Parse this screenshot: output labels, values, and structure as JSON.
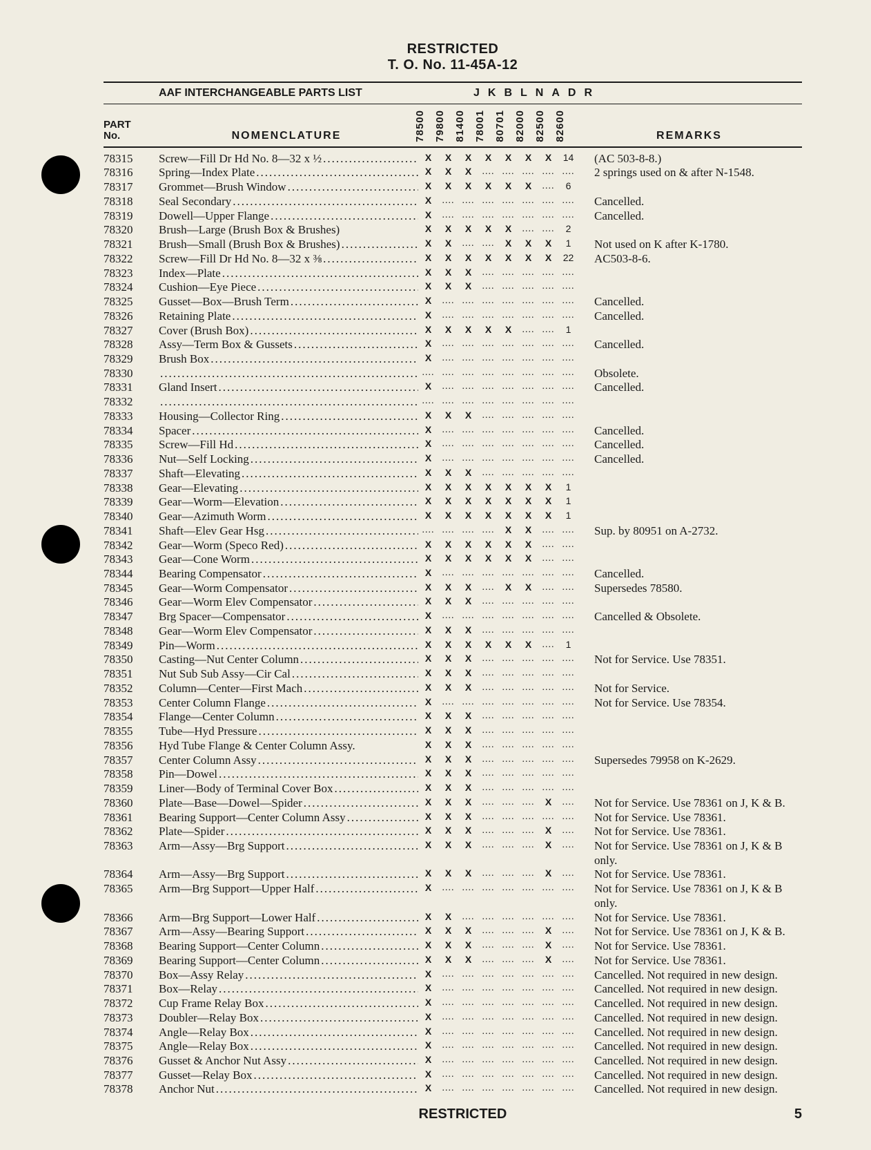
{
  "header": {
    "classification": "RESTRICTED",
    "doc_number": "T. O. No. 11-45A-12",
    "list_title": "AAF INTERCHANGEABLE PARTS LIST",
    "model_letters": "JKBLNADR"
  },
  "columns": {
    "part_no_l1": "PART",
    "part_no_l2": "No.",
    "nomenclature": "NOMENCLATURE",
    "remarks": "REMARKS",
    "model_codes": [
      "78500",
      "79800",
      "81400",
      "78001",
      "80701",
      "82000",
      "82500",
      "82600"
    ]
  },
  "footer": {
    "classification": "RESTRICTED",
    "page": "5"
  },
  "rows": [
    {
      "pn": "78315",
      "nm": "Screw—Fill Dr Hd No. 8—32 x ½",
      "mk": [
        "X",
        "X",
        "X",
        "X",
        "X",
        "X",
        "X",
        "14"
      ],
      "rm": "(AC 503-8-8.)"
    },
    {
      "pn": "78316",
      "nm": "Spring—Index Plate",
      "mk": [
        "X",
        "X",
        "X",
        "",
        "",
        "",
        "",
        ""
      ],
      "rm": "2 springs used on & after N-1548."
    },
    {
      "pn": "78317",
      "nm": "Grommet—Brush Window",
      "mk": [
        "X",
        "X",
        "X",
        "X",
        "X",
        "X",
        "",
        "6"
      ],
      "rm": ""
    },
    {
      "pn": "78318",
      "nm": "Seal Secondary",
      "mk": [
        "X",
        "",
        "",
        "",
        "",
        "",
        "",
        ""
      ],
      "rm": "Cancelled."
    },
    {
      "pn": "78319",
      "nm": "Dowell—Upper Flange",
      "mk": [
        "X",
        "",
        "",
        "",
        "",
        "",
        "",
        ""
      ],
      "rm": "Cancelled."
    },
    {
      "pn": "78320",
      "nm": "Brush—Large (Brush Box & Brushes)",
      "mk": [
        "X",
        "X",
        "X",
        "X",
        "X",
        "",
        "",
        "2"
      ],
      "rm": "",
      "noleader": true
    },
    {
      "pn": "78321",
      "nm": "Brush—Small (Brush Box & Brushes)",
      "mk": [
        "X",
        "X",
        "",
        "",
        "X",
        "X",
        "X",
        "1"
      ],
      "rm": "Not used on K after K-1780."
    },
    {
      "pn": "78322",
      "nm": "Screw—Fill Dr Hd No. 8—32 x ⅜",
      "mk": [
        "X",
        "X",
        "X",
        "X",
        "X",
        "X",
        "X",
        "22"
      ],
      "rm": "AC503-8-6."
    },
    {
      "pn": "78323",
      "nm": "Index—Plate",
      "mk": [
        "X",
        "X",
        "X",
        "",
        "",
        "",
        "",
        ""
      ],
      "rm": ""
    },
    {
      "pn": "78324",
      "nm": "Cushion—Eye Piece",
      "mk": [
        "X",
        "X",
        "X",
        "",
        "",
        "",
        "",
        ""
      ],
      "rm": ""
    },
    {
      "pn": "78325",
      "nm": "Gusset—Box—Brush Term",
      "mk": [
        "X",
        "",
        "",
        "",
        "",
        "",
        "",
        ""
      ],
      "rm": "Cancelled."
    },
    {
      "pn": "78326",
      "nm": "Retaining Plate",
      "mk": [
        "X",
        "",
        "",
        "",
        "",
        "",
        "",
        ""
      ],
      "rm": "Cancelled."
    },
    {
      "pn": "78327",
      "nm": "Cover (Brush Box)",
      "mk": [
        "X",
        "X",
        "X",
        "X",
        "X",
        "",
        "",
        "1"
      ],
      "rm": ""
    },
    {
      "pn": "78328",
      "nm": "Assy—Term Box & Gussets",
      "mk": [
        "X",
        "",
        "",
        "",
        "",
        "",
        "",
        ""
      ],
      "rm": "Cancelled."
    },
    {
      "pn": "78329",
      "nm": "Brush Box",
      "mk": [
        "X",
        "",
        "",
        "",
        "",
        "",
        "",
        ""
      ],
      "rm": ""
    },
    {
      "pn": "78330",
      "nm": "",
      "mk": [
        "",
        "",
        "",
        "",
        "",
        "",
        "",
        ""
      ],
      "rm": "Obsolete."
    },
    {
      "pn": "78331",
      "nm": "Gland Insert",
      "mk": [
        "X",
        "",
        "",
        "",
        "",
        "",
        "",
        ""
      ],
      "rm": "Cancelled."
    },
    {
      "pn": "78332",
      "nm": "",
      "mk": [
        "",
        "",
        "",
        "",
        "",
        "",
        "",
        ""
      ],
      "rm": ""
    },
    {
      "pn": "78333",
      "nm": "Housing—Collector Ring",
      "mk": [
        "X",
        "X",
        "X",
        "",
        "",
        "",
        "",
        ""
      ],
      "rm": ""
    },
    {
      "pn": "78334",
      "nm": "Spacer",
      "mk": [
        "X",
        "",
        "",
        "",
        "",
        "",
        "",
        ""
      ],
      "rm": "Cancelled."
    },
    {
      "pn": "78335",
      "nm": "Screw—Fill Hd",
      "mk": [
        "X",
        "",
        "",
        "",
        "",
        "",
        "",
        ""
      ],
      "rm": "Cancelled."
    },
    {
      "pn": "78336",
      "nm": "Nut—Self Locking",
      "mk": [
        "X",
        "",
        "",
        "",
        "",
        "",
        "",
        ""
      ],
      "rm": "Cancelled."
    },
    {
      "pn": "78337",
      "nm": "Shaft—Elevating",
      "mk": [
        "X",
        "X",
        "X",
        "",
        "",
        "",
        "",
        ""
      ],
      "rm": ""
    },
    {
      "pn": "78338",
      "nm": "Gear—Elevating",
      "mk": [
        "X",
        "X",
        "X",
        "X",
        "X",
        "X",
        "X",
        "1"
      ],
      "rm": ""
    },
    {
      "pn": "78339",
      "nm": "Gear—Worm—Elevation",
      "mk": [
        "X",
        "X",
        "X",
        "X",
        "X",
        "X",
        "X",
        "1"
      ],
      "rm": ""
    },
    {
      "pn": "78340",
      "nm": "Gear—Azimuth Worm",
      "mk": [
        "X",
        "X",
        "X",
        "X",
        "X",
        "X",
        "X",
        "1"
      ],
      "rm": ""
    },
    {
      "pn": "78341",
      "nm": "Shaft—Elev Gear Hsg",
      "mk": [
        "",
        "",
        "",
        "",
        "X",
        "X",
        "",
        ""
      ],
      "rm": "Sup. by 80951 on A-2732."
    },
    {
      "pn": "78342",
      "nm": "Gear—Worm (Speco Red)",
      "mk": [
        "X",
        "X",
        "X",
        "X",
        "X",
        "X",
        "",
        ""
      ],
      "rm": ""
    },
    {
      "pn": "78343",
      "nm": "Gear—Cone Worm",
      "mk": [
        "X",
        "X",
        "X",
        "X",
        "X",
        "X",
        "",
        ""
      ],
      "rm": ""
    },
    {
      "pn": "78344",
      "nm": "Bearing Compensator",
      "mk": [
        "X",
        "",
        "",
        "",
        "",
        "",
        "",
        ""
      ],
      "rm": "Cancelled."
    },
    {
      "pn": "78345",
      "nm": "Gear—Worm Compensator",
      "mk": [
        "X",
        "X",
        "X",
        "",
        "X",
        "X",
        "",
        ""
      ],
      "rm": "Supersedes 78580."
    },
    {
      "pn": "78346",
      "nm": "Gear—Worm Elev Compensator",
      "mk": [
        "X",
        "X",
        "X",
        "",
        "",
        "",
        "",
        ""
      ],
      "rm": ""
    },
    {
      "pn": "78347",
      "nm": "Brg Spacer—Compensator",
      "mk": [
        "X",
        "",
        "",
        "",
        "",
        "",
        "",
        ""
      ],
      "rm": "Cancelled & Obsolete."
    },
    {
      "pn": "78348",
      "nm": "Gear—Worm Elev Compensator",
      "mk": [
        "X",
        "X",
        "X",
        "",
        "",
        "",
        "",
        ""
      ],
      "rm": ""
    },
    {
      "pn": "78349",
      "nm": "Pin—Worm",
      "mk": [
        "X",
        "X",
        "X",
        "X",
        "X",
        "X",
        "",
        "1"
      ],
      "rm": ""
    },
    {
      "pn": "78350",
      "nm": "Casting—Nut Center Column",
      "mk": [
        "X",
        "X",
        "X",
        "",
        "",
        "",
        "",
        ""
      ],
      "rm": "Not for Service.  Use 78351."
    },
    {
      "pn": "78351",
      "nm": "Nut Sub Sub Assy—Cir Cal",
      "mk": [
        "X",
        "X",
        "X",
        "",
        "",
        "",
        "",
        ""
      ],
      "rm": ""
    },
    {
      "pn": "78352",
      "nm": "Column—Center—First Mach",
      "mk": [
        "X",
        "X",
        "X",
        "",
        "",
        "",
        "",
        ""
      ],
      "rm": "Not for Service."
    },
    {
      "pn": "78353",
      "nm": "Center Column Flange",
      "mk": [
        "X",
        "",
        "",
        "",
        "",
        "",
        "",
        ""
      ],
      "rm": "Not for Service.  Use 78354."
    },
    {
      "pn": "78354",
      "nm": "Flange—Center Column",
      "mk": [
        "X",
        "X",
        "X",
        "",
        "",
        "",
        "",
        ""
      ],
      "rm": ""
    },
    {
      "pn": "78355",
      "nm": "Tube—Hyd Pressure",
      "mk": [
        "X",
        "X",
        "X",
        "",
        "",
        "",
        "",
        ""
      ],
      "rm": ""
    },
    {
      "pn": "78356",
      "nm": "Hyd Tube Flange & Center Column Assy.",
      "mk": [
        "X",
        "X",
        "X",
        "",
        "",
        "",
        "",
        ""
      ],
      "rm": "",
      "noleader": true
    },
    {
      "pn": "78357",
      "nm": "Center Column Assy",
      "mk": [
        "X",
        "X",
        "X",
        "",
        "",
        "",
        "",
        ""
      ],
      "rm": "Supersedes 79958 on K-2629."
    },
    {
      "pn": "78358",
      "nm": "Pin—Dowel",
      "mk": [
        "X",
        "X",
        "X",
        "",
        "",
        "",
        "",
        ""
      ],
      "rm": ""
    },
    {
      "pn": "78359",
      "nm": "Liner—Body of Terminal Cover Box",
      "mk": [
        "X",
        "X",
        "X",
        "",
        "",
        "",
        "",
        ""
      ],
      "rm": ""
    },
    {
      "pn": "78360",
      "nm": "Plate—Base—Dowel—Spider",
      "mk": [
        "X",
        "X",
        "X",
        "",
        "",
        "",
        "X",
        ""
      ],
      "rm": "Not for Service.  Use 78361 on J, K & B."
    },
    {
      "pn": "78361",
      "nm": "Bearing Support—Center Column Assy",
      "mk": [
        "X",
        "X",
        "X",
        "",
        "",
        "",
        "",
        ""
      ],
      "rm": "Not for Service.  Use 78361."
    },
    {
      "pn": "78362",
      "nm": "Plate—Spider",
      "mk": [
        "X",
        "X",
        "X",
        "",
        "",
        "",
        "X",
        ""
      ],
      "rm": "Not for Service.  Use 78361."
    },
    {
      "pn": "78363",
      "nm": "Arm—Assy—Brg Support",
      "mk": [
        "X",
        "X",
        "X",
        "",
        "",
        "",
        "X",
        ""
      ],
      "rm": "Not for Service.  Use 78361 on J, K & B only."
    },
    {
      "pn": "78364",
      "nm": "Arm—Assy—Brg Support",
      "mk": [
        "X",
        "X",
        "X",
        "",
        "",
        "",
        "X",
        ""
      ],
      "rm": "Not for Service.  Use 78361."
    },
    {
      "pn": "78365",
      "nm": "Arm—Brg Support—Upper Half",
      "mk": [
        "X",
        "",
        "",
        "",
        "",
        "",
        "",
        ""
      ],
      "rm": "Not for Service.  Use 78361 on J, K & B only."
    },
    {
      "pn": "78366",
      "nm": "Arm—Brg Support—Lower Half",
      "mk": [
        "X",
        "X",
        "",
        "",
        "",
        "",
        "",
        ""
      ],
      "rm": "Not for Service.  Use 78361."
    },
    {
      "pn": "78367",
      "nm": "Arm—Assy—Bearing Support",
      "mk": [
        "X",
        "X",
        "X",
        "",
        "",
        "",
        "X",
        ""
      ],
      "rm": "Not for Service.  Use 78361 on J, K & B."
    },
    {
      "pn": "78368",
      "nm": "Bearing Support—Center Column",
      "mk": [
        "X",
        "X",
        "X",
        "",
        "",
        "",
        "X",
        ""
      ],
      "rm": "Not for Service.  Use 78361."
    },
    {
      "pn": "78369",
      "nm": "Bearing Support—Center Column",
      "mk": [
        "X",
        "X",
        "X",
        "",
        "",
        "",
        "X",
        ""
      ],
      "rm": "Not for Service.  Use 78361."
    },
    {
      "pn": "78370",
      "nm": "Box—Assy Relay",
      "mk": [
        "X",
        "",
        "",
        "",
        "",
        "",
        "",
        ""
      ],
      "rm": "Cancelled.  Not required in new design."
    },
    {
      "pn": "78371",
      "nm": "Box—Relay",
      "mk": [
        "X",
        "",
        "",
        "",
        "",
        "",
        "",
        ""
      ],
      "rm": "Cancelled.  Not required in new design."
    },
    {
      "pn": "78372",
      "nm": "Cup Frame Relay Box",
      "mk": [
        "X",
        "",
        "",
        "",
        "",
        "",
        "",
        ""
      ],
      "rm": "Cancelled.  Not required in new design."
    },
    {
      "pn": "78373",
      "nm": "Doubler—Relay Box",
      "mk": [
        "X",
        "",
        "",
        "",
        "",
        "",
        "",
        ""
      ],
      "rm": "Cancelled.  Not required in new design."
    },
    {
      "pn": "78374",
      "nm": "Angle—Relay Box",
      "mk": [
        "X",
        "",
        "",
        "",
        "",
        "",
        "",
        ""
      ],
      "rm": "Cancelled.  Not required in new design."
    },
    {
      "pn": "78375",
      "nm": "Angle—Relay Box",
      "mk": [
        "X",
        "",
        "",
        "",
        "",
        "",
        "",
        ""
      ],
      "rm": "Cancelled.  Not required in new design."
    },
    {
      "pn": "78376",
      "nm": "Gusset & Anchor Nut Assy",
      "mk": [
        "X",
        "",
        "",
        "",
        "",
        "",
        "",
        ""
      ],
      "rm": "Cancelled.  Not required in new design."
    },
    {
      "pn": "78377",
      "nm": "Gusset—Relay Box",
      "mk": [
        "X",
        "",
        "",
        "",
        "",
        "",
        "",
        ""
      ],
      "rm": "Cancelled.  Not required in new design."
    },
    {
      "pn": "78378",
      "nm": "Anchor Nut",
      "mk": [
        "X",
        "",
        "",
        "",
        "",
        "",
        "",
        ""
      ],
      "rm": "Cancelled.  Not required in new design."
    }
  ]
}
